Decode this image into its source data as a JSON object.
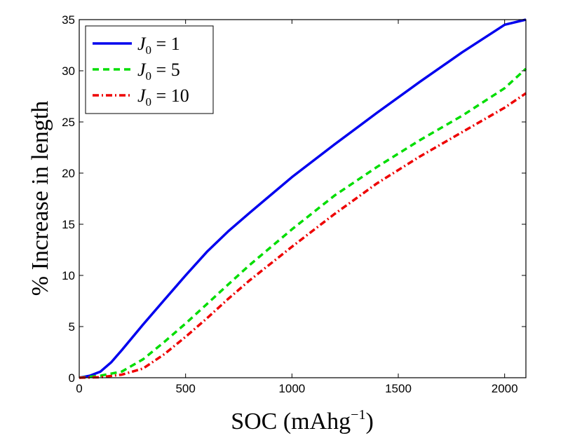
{
  "chart_data": {
    "type": "line",
    "title": "",
    "xlabel": "SOC (mAhg",
    "xlabel_sup": "−1",
    "xlabel_close": ")",
    "ylabel": "% Increase in length",
    "xlim": [
      0,
      2100
    ],
    "ylim": [
      0,
      35
    ],
    "xticks": [
      0,
      500,
      1000,
      1500,
      2000
    ],
    "yticks": [
      0,
      5,
      10,
      15,
      20,
      25,
      30,
      35
    ],
    "grid": false,
    "legend_position": "top-left",
    "series": [
      {
        "name": "J_0 = 1",
        "legend_var": "J",
        "legend_sub": "0",
        "legend_eq": " = 1",
        "color": "#0000ee",
        "style": "solid",
        "x": [
          0,
          50,
          100,
          150,
          200,
          300,
          400,
          500,
          600,
          700,
          800,
          1000,
          1200,
          1400,
          1600,
          1800,
          2000,
          2100
        ],
        "y": [
          0,
          0.2,
          0.6,
          1.5,
          2.7,
          5.2,
          7.6,
          10.0,
          12.3,
          14.3,
          16.1,
          19.6,
          22.8,
          25.9,
          28.9,
          31.8,
          34.5,
          35.0
        ]
      },
      {
        "name": "J_0 = 5",
        "legend_var": "J",
        "legend_sub": "0",
        "legend_eq": " = 5",
        "color": "#00dd00",
        "style": "dashed",
        "x": [
          0,
          100,
          200,
          300,
          400,
          500,
          600,
          700,
          800,
          1000,
          1200,
          1400,
          1600,
          1800,
          2000,
          2100
        ],
        "y": [
          0,
          0.2,
          0.6,
          1.8,
          3.5,
          5.3,
          7.2,
          9.1,
          11.0,
          14.5,
          17.8,
          20.6,
          23.2,
          25.6,
          28.3,
          30.2
        ]
      },
      {
        "name": "J_0 = 10",
        "legend_var": "J",
        "legend_sub": "0",
        "legend_eq": " = 10",
        "color": "#ee0000",
        "style": "dashdot",
        "x": [
          0,
          100,
          200,
          300,
          400,
          500,
          600,
          700,
          800,
          1000,
          1200,
          1400,
          1600,
          1800,
          2000,
          2100
        ],
        "y": [
          0,
          0.05,
          0.3,
          0.9,
          2.3,
          4.0,
          5.8,
          7.7,
          9.5,
          12.8,
          16.0,
          19.0,
          21.6,
          24.0,
          26.4,
          27.8
        ]
      }
    ]
  }
}
